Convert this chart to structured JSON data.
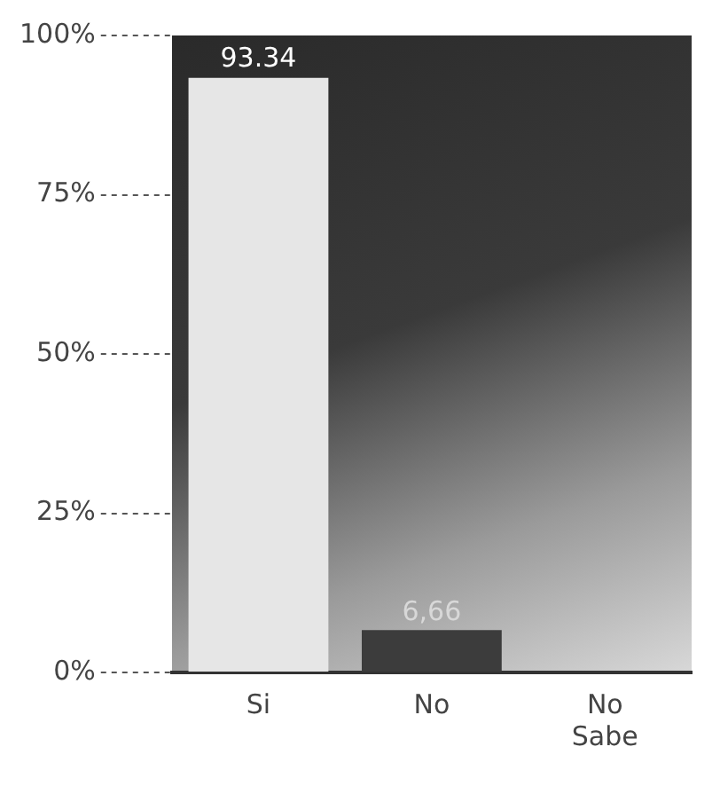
{
  "chart_data": {
    "type": "bar",
    "categories": [
      "Si",
      "No",
      "No Sabe"
    ],
    "values": [
      93.34,
      6.66,
      0
    ],
    "value_labels": [
      "93.34",
      "6,66",
      null
    ],
    "colors": [
      "#e6e6e6",
      "#3c3c3c",
      "#e6e6e6"
    ],
    "ylim": [
      0,
      100
    ],
    "yticks": [
      {
        "value": 0,
        "label": "0%"
      },
      {
        "value": 25,
        "label": "25%"
      },
      {
        "value": 50,
        "label": "50%"
      },
      {
        "value": 75,
        "label": "75%"
      },
      {
        "value": 100,
        "label": "100%"
      }
    ],
    "grid": false,
    "legend": false
  }
}
